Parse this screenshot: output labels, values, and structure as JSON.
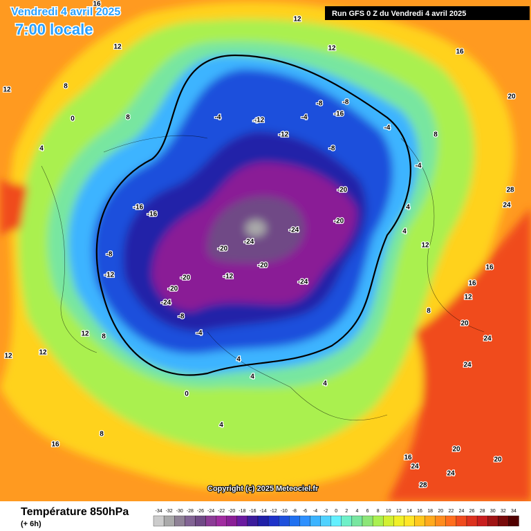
{
  "header": {
    "date": "Vendredi 4 avril 2025",
    "time": "7:00 locale",
    "run": "Run GFS 0 Z du Vendredi 4 avril 2025"
  },
  "copyright": "Copyright (c) 2025 Meteociel.fr",
  "footer": {
    "title": "Température 850hPa",
    "subtitle": "(+ 6h)"
  },
  "legend": {
    "levels": [
      -34,
      -32,
      -30,
      -28,
      -26,
      -24,
      -22,
      -20,
      -18,
      -16,
      -14,
      -12,
      -10,
      -8,
      -6,
      -4,
      -2,
      0,
      2,
      4,
      6,
      8,
      10,
      12,
      14,
      16,
      18,
      20,
      22,
      24,
      26,
      28,
      30,
      32,
      34
    ],
    "colors": [
      "#cccccc",
      "#aaaaaa",
      "#8f8296",
      "#826494",
      "#704a86",
      "#8c3c96",
      "#a02ca0",
      "#8a1e96",
      "#6a1aa0",
      "#3c1c9c",
      "#2020a8",
      "#1e32c8",
      "#1e50dc",
      "#2070f0",
      "#2e90ff",
      "#3cb4ff",
      "#50d2ff",
      "#64f0ff",
      "#6ef0c8",
      "#78e6a0",
      "#8ce678",
      "#aaf050",
      "#d2f032",
      "#f0f028",
      "#ffe628",
      "#ffc81e",
      "#ffaa1e",
      "#ff8c1e",
      "#ff6e1e",
      "#f04b1e",
      "#dc321e",
      "#c81e1e",
      "#a01414",
      "#780a0a",
      "#500000"
    ]
  },
  "map_labels": [
    "12",
    "12",
    "12",
    "16",
    "16",
    "12",
    "8",
    "8",
    "4",
    "0",
    "-4",
    "-8",
    "-12",
    "-12",
    "-8",
    "-4",
    "-8",
    "-4",
    "-8",
    "-4",
    "4",
    "4",
    "-16",
    "-20",
    "-20",
    "-24",
    "-24",
    "-20",
    "-16",
    "-16",
    "-20",
    "-24",
    "-12",
    "-20",
    "-20",
    "-24",
    "-8",
    "-12",
    "-8",
    "-4",
    "0",
    "4",
    "4",
    "4",
    "8",
    "8",
    "8",
    "12",
    "12",
    "12",
    "16",
    "16",
    "20",
    "20",
    "24",
    "24",
    "24",
    "28",
    "24",
    "20",
    "16",
    "12",
    "12",
    "8",
    "16",
    "20",
    "24",
    "28",
    "0",
    "4"
  ]
}
